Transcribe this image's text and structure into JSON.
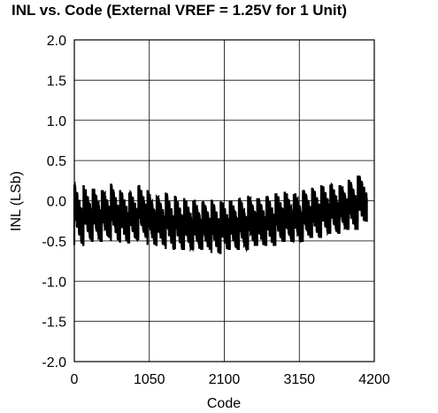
{
  "chart_data": {
    "type": "line",
    "title": "INL vs. Code (External VREF = 1.25V for 1 Unit)",
    "xlabel": "Code",
    "ylabel": "INL (LSb)",
    "xlim": [
      0,
      4200
    ],
    "ylim": [
      -2.0,
      2.0
    ],
    "x_ticks": [
      "0",
      "1050",
      "2100",
      "3150",
      "4200"
    ],
    "y_ticks": [
      "2.0",
      "1.5",
      "1.0",
      "0.5",
      "0.0",
      "-0.5",
      "-1.0",
      "-1.5",
      "-2.0"
    ],
    "grid": true,
    "series": [
      {
        "color": "#000000",
        "sawtooth_segments": [
          {
            "x_start": 0,
            "x_end": 128,
            "y_high": 0.2,
            "y_low": -0.55
          },
          {
            "x_start": 128,
            "x_end": 256,
            "y_high": 0.18,
            "y_low": -0.5
          },
          {
            "x_start": 256,
            "x_end": 384,
            "y_high": 0.15,
            "y_low": -0.5
          },
          {
            "x_start": 384,
            "x_end": 512,
            "y_high": 0.12,
            "y_low": -0.45
          },
          {
            "x_start": 512,
            "x_end": 640,
            "y_high": 0.2,
            "y_low": -0.5
          },
          {
            "x_start": 640,
            "x_end": 768,
            "y_high": 0.12,
            "y_low": -0.52
          },
          {
            "x_start": 768,
            "x_end": 896,
            "y_high": 0.1,
            "y_low": -0.48
          },
          {
            "x_start": 896,
            "x_end": 1024,
            "y_high": 0.18,
            "y_low": -0.45
          },
          {
            "x_start": 1024,
            "x_end": 1152,
            "y_high": 0.12,
            "y_low": -0.55
          },
          {
            "x_start": 1152,
            "x_end": 1280,
            "y_high": 0.05,
            "y_low": -0.55
          },
          {
            "x_start": 1280,
            "x_end": 1408,
            "y_high": 0.1,
            "y_low": -0.6
          },
          {
            "x_start": 1408,
            "x_end": 1536,
            "y_high": 0.05,
            "y_low": -0.6
          },
          {
            "x_start": 1536,
            "x_end": 1664,
            "y_high": 0.02,
            "y_low": -0.6
          },
          {
            "x_start": 1664,
            "x_end": 1792,
            "y_high": 0.0,
            "y_low": -0.6
          },
          {
            "x_start": 1792,
            "x_end": 1920,
            "y_high": -0.02,
            "y_low": -0.6
          },
          {
            "x_start": 1920,
            "x_end": 2048,
            "y_high": 0.0,
            "y_low": -0.65
          },
          {
            "x_start": 2048,
            "x_end": 2176,
            "y_high": -0.02,
            "y_low": -0.6
          },
          {
            "x_start": 2176,
            "x_end": 2304,
            "y_high": 0.0,
            "y_low": -0.6
          },
          {
            "x_start": 2304,
            "x_end": 2432,
            "y_high": 0.02,
            "y_low": -0.6
          },
          {
            "x_start": 2432,
            "x_end": 2560,
            "y_high": 0.05,
            "y_low": -0.55
          },
          {
            "x_start": 2560,
            "x_end": 2688,
            "y_high": 0.02,
            "y_low": -0.55
          },
          {
            "x_start": 2688,
            "x_end": 2816,
            "y_high": 0.05,
            "y_low": -0.55
          },
          {
            "x_start": 2816,
            "x_end": 2944,
            "y_high": 0.08,
            "y_low": -0.5
          },
          {
            "x_start": 2944,
            "x_end": 3072,
            "y_high": 0.1,
            "y_low": -0.5
          },
          {
            "x_start": 3072,
            "x_end": 3200,
            "y_high": 0.08,
            "y_low": -0.5
          },
          {
            "x_start": 3200,
            "x_end": 3328,
            "y_high": 0.12,
            "y_low": -0.45
          },
          {
            "x_start": 3328,
            "x_end": 3456,
            "y_high": 0.15,
            "y_low": -0.45
          },
          {
            "x_start": 3456,
            "x_end": 3584,
            "y_high": 0.18,
            "y_low": -0.4
          },
          {
            "x_start": 3584,
            "x_end": 3712,
            "y_high": 0.2,
            "y_low": -0.4
          },
          {
            "x_start": 3712,
            "x_end": 3840,
            "y_high": 0.18,
            "y_low": -0.35
          },
          {
            "x_start": 3840,
            "x_end": 3968,
            "y_high": 0.25,
            "y_low": -0.35
          },
          {
            "x_start": 3968,
            "x_end": 4096,
            "y_high": 0.3,
            "y_low": -0.25
          }
        ]
      }
    ]
  }
}
